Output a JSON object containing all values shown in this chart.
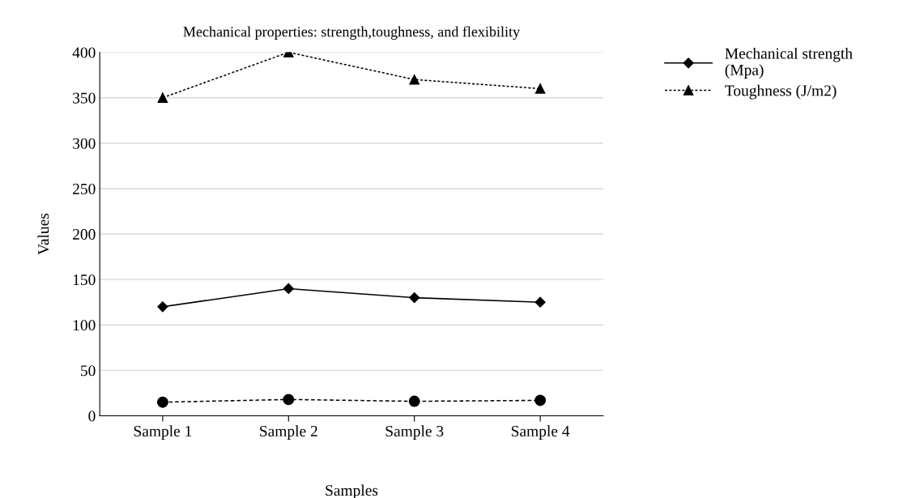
{
  "chart_data": {
    "type": "line",
    "title": "Mechanical properties: strength,toughness, and flexibility",
    "xlabel": "Samples",
    "ylabel": "Values",
    "categories": [
      "Sample 1",
      "Sample 2",
      "Sample 3",
      "Sample 4"
    ],
    "series": [
      {
        "name": "Mechanical strength (Mpa)",
        "color": "#000000",
        "values": [
          120,
          140,
          130,
          125
        ],
        "marker": "diamond",
        "line_style": "solid"
      },
      {
        "name": "Toughness (J/m2)",
        "color": "#000000",
        "values": [
          350,
          400,
          370,
          360
        ],
        "marker": "triangle",
        "line_style": "dotted"
      },
      {
        "color": "#000000",
        "values": [
          15,
          18,
          16,
          17
        ],
        "marker": "circle",
        "line_style": "dashed"
      }
    ],
    "ylim": [
      0,
      400
    ],
    "yticks": [
      0,
      50,
      100,
      150,
      200,
      250,
      300,
      350,
      400
    ],
    "grid": "y",
    "legend": "top right"
  }
}
